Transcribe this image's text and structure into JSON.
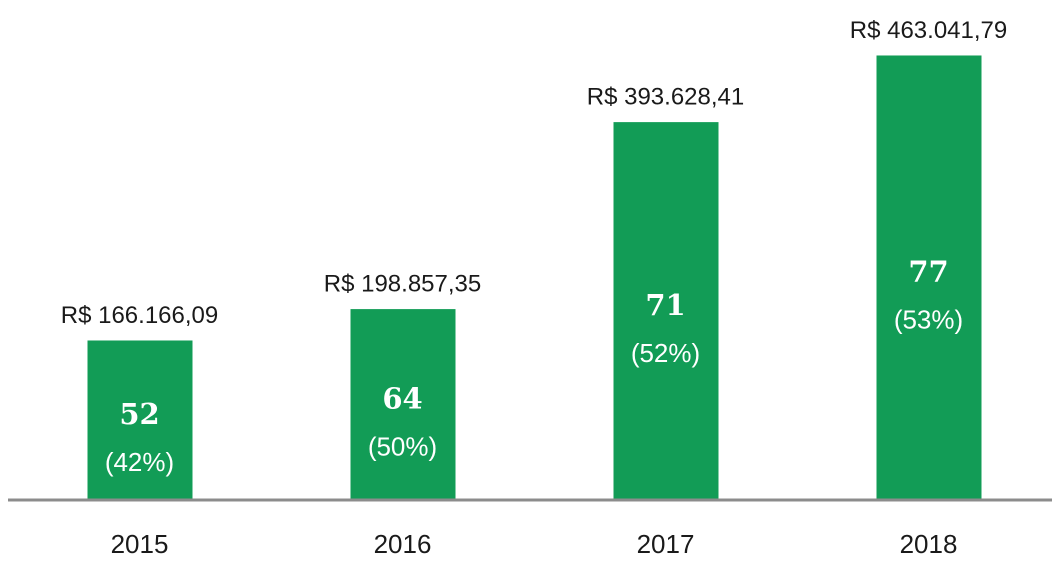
{
  "chart_data": {
    "type": "bar",
    "categories": [
      "2015",
      "2016",
      "2017",
      "2018"
    ],
    "values": [
      166166.09,
      198857.35,
      393628.41,
      463041.79
    ],
    "value_labels": [
      "R$ 166.166,09",
      "R$ 198.857,35",
      "R$ 393.628,41",
      "R$ 463.041,79"
    ],
    "counts": [
      52,
      64,
      71,
      77
    ],
    "shares": [
      42,
      50,
      52,
      53
    ],
    "share_labels": [
      "(42%)",
      "(50%)",
      "(52%)",
      "(53%)"
    ],
    "color": "#129c56",
    "ylim": [
      0,
      475000
    ]
  }
}
